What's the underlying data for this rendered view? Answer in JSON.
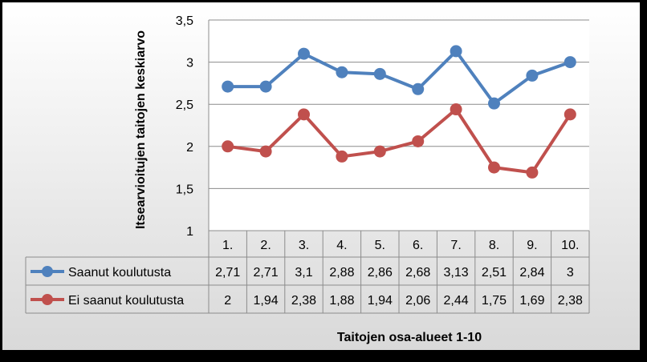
{
  "chart_data": {
    "type": "line",
    "ylabel": "Itsearvioitujen taitojen keskiarvo",
    "xlabel": "Taitojen osa-alueet 1-10",
    "ylim": [
      1,
      3.5
    ],
    "yticks": [
      "1",
      "1,5",
      "2",
      "2,5",
      "3",
      "3,5"
    ],
    "categories": [
      "1.",
      "2.",
      "3.",
      "4.",
      "5.",
      "6.",
      "7.",
      "8.",
      "9.",
      "10."
    ],
    "grid": true,
    "legend": "data-table-left",
    "series": [
      {
        "name": "Saanut koulutusta",
        "color": "#4f81bd",
        "values": [
          2.71,
          2.71,
          3.1,
          2.88,
          2.86,
          2.68,
          3.13,
          2.51,
          2.84,
          3
        ],
        "labels": [
          "2,71",
          "2,71",
          "3,1",
          "2,88",
          "2,86",
          "2,68",
          "3,13",
          "2,51",
          "2,84",
          "3"
        ]
      },
      {
        "name": "Ei saanut koulutusta",
        "color": "#c0504d",
        "values": [
          2,
          1.94,
          2.38,
          1.88,
          1.94,
          2.06,
          2.44,
          1.75,
          1.69,
          2.38
        ],
        "labels": [
          "2",
          "1,94",
          "2,38",
          "1,88",
          "1,94",
          "2,06",
          "2,44",
          "1,75",
          "1,69",
          "2,38"
        ]
      }
    ]
  }
}
